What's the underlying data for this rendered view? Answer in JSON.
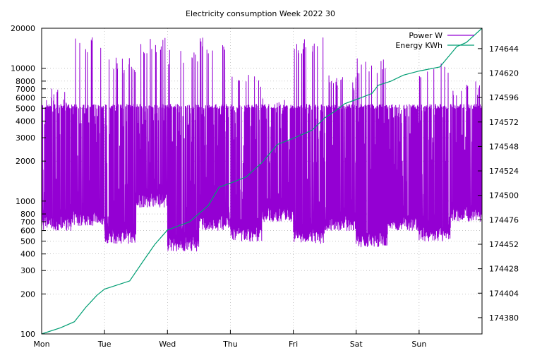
{
  "chart_data": {
    "type": "line",
    "title": "Electricity consumption Week 2022 30",
    "xlabel": "",
    "ylabel": "",
    "y2label": "",
    "x_range": [
      0,
      7
    ],
    "x_ticks": [
      {
        "pos": 0,
        "label": "Mon"
      },
      {
        "pos": 1,
        "label": "Tue"
      },
      {
        "pos": 2,
        "label": "Wed"
      },
      {
        "pos": 3,
        "label": "Thu"
      },
      {
        "pos": 4,
        "label": "Fri"
      },
      {
        "pos": 5,
        "label": "Sat"
      },
      {
        "pos": 6,
        "label": "Sun"
      }
    ],
    "y_scale": "log",
    "ylim": [
      100,
      20000
    ],
    "y_ticks": [
      {
        "value": 100,
        "label": "100"
      },
      {
        "value": 200,
        "label": "200"
      },
      {
        "value": 300,
        "label": "300"
      },
      {
        "value": 400,
        "label": "400"
      },
      {
        "value": 500,
        "label": "500"
      },
      {
        "value": 600,
        "label": "600"
      },
      {
        "value": 700,
        "label": "700"
      },
      {
        "value": 800,
        "label": "800"
      },
      {
        "value": 1000,
        "label": "1000"
      },
      {
        "value": 2000,
        "label": "2000"
      },
      {
        "value": 3000,
        "label": "3000"
      },
      {
        "value": 4000,
        "label": "4000"
      },
      {
        "value": 5000,
        "label": "5000"
      },
      {
        "value": 6000,
        "label": "6000"
      },
      {
        "value": 7000,
        "label": "7000"
      },
      {
        "value": 8000,
        "label": "8000"
      },
      {
        "value": 10000,
        "label": "10000"
      },
      {
        "value": 20000,
        "label": "20000"
      }
    ],
    "y2_scale": "linear",
    "y2lim": [
      174364,
      174664
    ],
    "y2_ticks": [
      {
        "value": 174380,
        "label": "174380"
      },
      {
        "value": 174404,
        "label": "174404"
      },
      {
        "value": 174428,
        "label": "174428"
      },
      {
        "value": 174452,
        "label": "174452"
      },
      {
        "value": 174476,
        "label": "174476"
      },
      {
        "value": 174500,
        "label": "174500"
      },
      {
        "value": 174524,
        "label": "174524"
      },
      {
        "value": 174548,
        "label": "174548"
      },
      {
        "value": 174572,
        "label": "174572"
      },
      {
        "value": 174596,
        "label": "174596"
      },
      {
        "value": 174620,
        "label": "174620"
      },
      {
        "value": 174644,
        "label": "174644"
      }
    ],
    "grid": true,
    "legend_position": "top-right",
    "series": [
      {
        "name": "Power W",
        "axis": "y",
        "color": "#9400d3",
        "baseline": 5200,
        "active_periods": [
          {
            "start": 0.0,
            "end": 0.5,
            "low": 600,
            "high": 7000
          },
          {
            "start": 0.5,
            "end": 1.0,
            "low": 650,
            "high": 17000
          },
          {
            "start": 1.0,
            "end": 1.5,
            "low": 480,
            "high": 12000
          },
          {
            "start": 1.5,
            "end": 2.0,
            "low": 900,
            "high": 17000
          },
          {
            "start": 2.0,
            "end": 2.5,
            "low": 420,
            "high": 14000
          },
          {
            "start": 2.5,
            "end": 3.0,
            "low": 600,
            "high": 17000
          },
          {
            "start": 3.0,
            "end": 3.5,
            "low": 500,
            "high": 9000
          },
          {
            "start": 3.5,
            "end": 4.0,
            "low": 700,
            "high": 6000
          },
          {
            "start": 4.0,
            "end": 4.5,
            "low": 480,
            "high": 17000
          },
          {
            "start": 4.5,
            "end": 5.0,
            "low": 600,
            "high": 9000
          },
          {
            "start": 5.0,
            "end": 5.5,
            "low": 450,
            "high": 12000
          },
          {
            "start": 5.5,
            "end": 6.0,
            "low": 600,
            "high": 5000
          },
          {
            "start": 6.0,
            "end": 6.5,
            "low": 500,
            "high": 11000
          },
          {
            "start": 6.5,
            "end": 7.0,
            "low": 700,
            "high": 8000
          }
        ]
      },
      {
        "name": "Energy KWh",
        "axis": "y2",
        "color": "#009e73",
        "x": [
          0.0,
          0.3,
          0.52,
          0.7,
          0.88,
          1.0,
          1.4,
          1.62,
          1.8,
          2.0,
          2.35,
          2.65,
          2.82,
          3.0,
          3.25,
          3.5,
          3.75,
          4.0,
          4.3,
          4.5,
          4.65,
          4.82,
          5.0,
          5.25,
          5.35,
          5.55,
          5.75,
          6.0,
          6.33,
          6.6,
          6.75,
          7.0
        ],
        "values": [
          174364,
          174370,
          174376,
          174390,
          174402,
          174408,
          174416,
          174436,
          174452,
          174466,
          174474,
          174490,
          174508,
          174512,
          174518,
          174532,
          174550,
          174556,
          174564,
          174576,
          174582,
          174590,
          174594,
          174600,
          174608,
          174612,
          174618,
          174622,
          174626,
          174646,
          174650,
          174664
        ]
      }
    ]
  }
}
